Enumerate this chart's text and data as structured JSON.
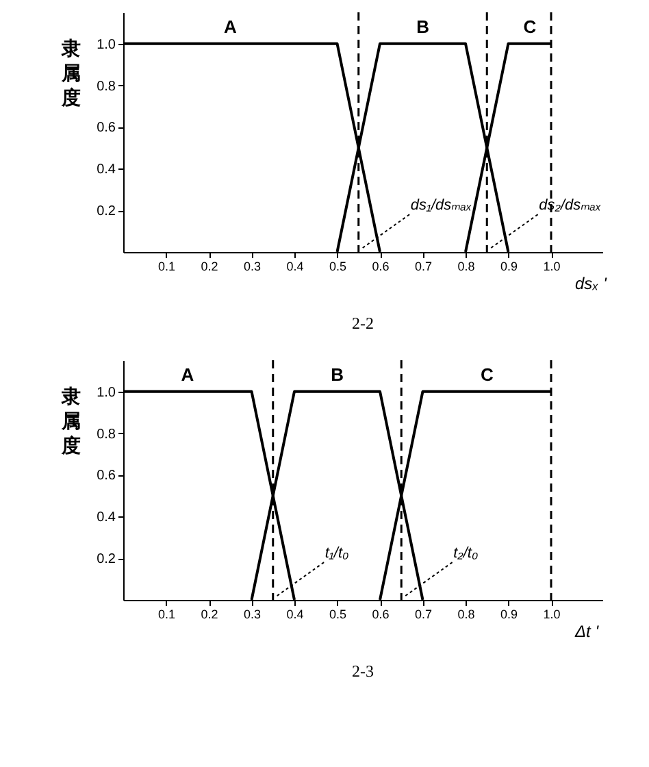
{
  "chart_data": [
    {
      "type": "line",
      "title": "2-2",
      "xlabel": "dsₓ '",
      "ylabel": "隶属度",
      "xlim": [
        0,
        1.12
      ],
      "ylim": [
        0,
        1.15
      ],
      "xticks": [
        0.1,
        0.2,
        0.3,
        0.4,
        0.5,
        0.6,
        0.7,
        0.8,
        0.9,
        {
          "value": 1,
          "label": "1.0"
        }
      ],
      "yticks": [
        0.2,
        0.4,
        0.6,
        0.8,
        {
          "value": 1,
          "label": "1.0"
        }
      ],
      "grid": false,
      "series": [
        {
          "name": "A",
          "color": "#000000",
          "x": [
            0,
            0.5,
            0.6
          ],
          "values": [
            1,
            1,
            0
          ]
        },
        {
          "name": "B",
          "color": "#000000",
          "x": [
            0.5,
            0.6,
            0.8,
            0.9
          ],
          "values": [
            0,
            1,
            1,
            0
          ]
        },
        {
          "name": "C",
          "color": "#000000",
          "x": [
            0.8,
            0.9,
            1.0
          ],
          "values": [
            0,
            1,
            1
          ]
        }
      ],
      "ref_lines": [
        {
          "axis": "x",
          "value": 0.55,
          "line_style": "dashed",
          "color": "#000000"
        },
        {
          "axis": "x",
          "value": 0.85,
          "line_style": "dashed",
          "color": "#000000"
        },
        {
          "axis": "x",
          "value": 1.0,
          "line_style": "dashed",
          "color": "#000000"
        }
      ],
      "annotations": [
        {
          "text": "ds₁/dsₘₐₓ",
          "x": 0.55,
          "y": 0
        },
        {
          "text": "ds₂/dsₘₐₓ",
          "x": 0.85,
          "y": 0
        }
      ]
    },
    {
      "type": "line",
      "title": "2-3",
      "xlabel": "Δt '",
      "ylabel": "隶属度",
      "xlim": [
        0,
        1.12
      ],
      "ylim": [
        0,
        1.15
      ],
      "xticks": [
        0.1,
        0.2,
        0.3,
        0.4,
        0.5,
        0.6,
        0.7,
        0.8,
        0.9,
        {
          "value": 1,
          "label": "1.0"
        }
      ],
      "yticks": [
        0.2,
        0.4,
        0.6,
        0.8,
        {
          "value": 1,
          "label": "1.0"
        }
      ],
      "grid": false,
      "series": [
        {
          "name": "A",
          "color": "#000000",
          "x": [
            0,
            0.3,
            0.4
          ],
          "values": [
            1,
            1,
            0
          ]
        },
        {
          "name": "B",
          "color": "#000000",
          "x": [
            0.3,
            0.4,
            0.6,
            0.7
          ],
          "values": [
            0,
            1,
            1,
            0
          ]
        },
        {
          "name": "C",
          "color": "#000000",
          "x": [
            0.6,
            0.7,
            1.0
          ],
          "values": [
            0,
            1,
            1
          ]
        }
      ],
      "ref_lines": [
        {
          "axis": "x",
          "value": 0.35,
          "line_style": "dashed",
          "color": "#000000"
        },
        {
          "axis": "x",
          "value": 0.65,
          "line_style": "dashed",
          "color": "#000000"
        },
        {
          "axis": "x",
          "value": 1.0,
          "line_style": "dashed",
          "color": "#000000"
        }
      ],
      "annotations": [
        {
          "text": "t₁/t₀",
          "x": 0.35,
          "y": 0
        },
        {
          "text": "t₂/t₀",
          "x": 0.65,
          "y": 0
        }
      ]
    }
  ]
}
